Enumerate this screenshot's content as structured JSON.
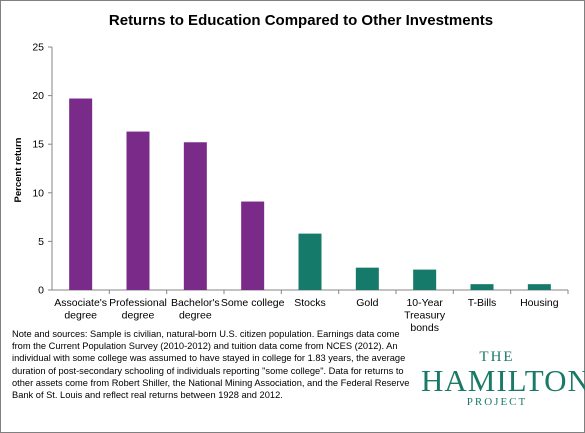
{
  "chart_data": {
    "type": "bar",
    "title": "Returns to Education Compared to Other Investments",
    "ylabel": "Percent return",
    "xlabel": "",
    "ylim": [
      0,
      25
    ],
    "yticks": [
      0,
      5,
      10,
      15,
      20,
      25
    ],
    "grid": false,
    "legend": "none",
    "categories": [
      [
        "Associate's",
        "degree"
      ],
      [
        "Professional",
        "degree"
      ],
      [
        "Bachelor's",
        "degree"
      ],
      [
        "Some college"
      ],
      [
        "Stocks"
      ],
      [
        "Gold"
      ],
      [
        "10-Year",
        "Treasury",
        "bonds"
      ],
      [
        "T-Bills"
      ],
      [
        "Housing"
      ]
    ],
    "values": [
      19.7,
      16.3,
      15.2,
      9.1,
      5.8,
      2.3,
      2.1,
      0.6,
      0.6
    ],
    "bar_colors": [
      "#7a2b8a",
      "#7a2b8a",
      "#7a2b8a",
      "#7a2b8a",
      "#157a6a",
      "#157a6a",
      "#157a6a",
      "#157a6a",
      "#157a6a"
    ]
  },
  "note": "Note and sources: Sample is civilian, natural-born U.S. citizen population.  Earnings data come from the Current Population Survey (2010-2012) and tuition data  come from NCES (2012). An individual with some college was assumed to have stayed in college for 1.83 years, the average duration of post-secondary schooling of individuals reporting \"some college\". Data for returns to other assets come from Robert Shiller, the National Mining Association, and the Federal Reserve Bank of St. Louis and reflect real returns between 1928 and 2012.",
  "logo": {
    "line1": "THE",
    "line2": "HAMILTON",
    "line3": "PROJECT",
    "color": "#1a7a68"
  }
}
